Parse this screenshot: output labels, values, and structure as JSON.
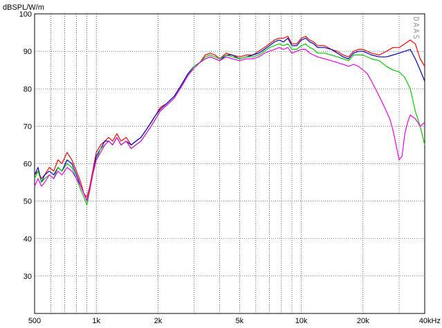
{
  "chart_data": {
    "type": "line",
    "ylabel": "dBSPL/W/m",
    "xscale": "log",
    "xlim": [
      500,
      40000
    ],
    "ylim": [
      20,
      100
    ],
    "grid": true,
    "watermark": "DAAS",
    "yticks": [
      {
        "value": 100,
        "label": "100"
      },
      {
        "value": 90,
        "label": "90"
      },
      {
        "value": 80,
        "label": "80"
      },
      {
        "value": 70,
        "label": "70"
      },
      {
        "value": 60,
        "label": "60"
      },
      {
        "value": 50,
        "label": "50"
      },
      {
        "value": 40,
        "label": "40"
      },
      {
        "value": 30,
        "label": "30"
      }
    ],
    "xticks": [
      {
        "value": 500,
        "label": "500"
      },
      {
        "value": 1000,
        "label": "1k"
      },
      {
        "value": 2000,
        "label": "2k"
      },
      {
        "value": 5000,
        "label": "5k"
      },
      {
        "value": 10000,
        "label": "10k"
      },
      {
        "value": 20000,
        "label": "20k"
      },
      {
        "value": 40000,
        "label": "40kHz"
      }
    ],
    "minor_x_grid": [
      600,
      700,
      800,
      900,
      3000,
      4000,
      6000,
      7000,
      8000,
      9000,
      30000
    ],
    "series": [
      {
        "color": "#ff0000",
        "x": [
          500,
          520,
          540,
          560,
          590,
          620,
          650,
          680,
          720,
          760,
          800,
          840,
          870,
          900,
          930,
          960,
          1000,
          1050,
          1100,
          1150,
          1200,
          1260,
          1320,
          1400,
          1480,
          1560,
          1650,
          1750,
          1850,
          1950,
          2050,
          2200,
          2400,
          2600,
          2800,
          3000,
          3200,
          3400,
          3600,
          3800,
          4000,
          4300,
          4600,
          5000,
          5400,
          5800,
          6200,
          6600,
          7000,
          7400,
          7800,
          8200,
          8600,
          9000,
          9500,
          10000,
          10500,
          11000,
          11500,
          12000,
          13000,
          14000,
          15000,
          16000,
          17000,
          18000,
          19000,
          20000,
          22000,
          24000,
          26000,
          28000,
          30000,
          32000,
          34000,
          36000,
          38000,
          40000
        ],
        "y": [
          57,
          58,
          56,
          57,
          59,
          58,
          61,
          60,
          63,
          61,
          58,
          55,
          52,
          51,
          54,
          58,
          63,
          65,
          66,
          67,
          66,
          68,
          66,
          67,
          65,
          66,
          67,
          69,
          71,
          73,
          75,
          76,
          78,
          81,
          84,
          86,
          87,
          89,
          89.5,
          89,
          88,
          89.5,
          89,
          88.5,
          89,
          89,
          90,
          91,
          92,
          93,
          93.5,
          93.5,
          94,
          92,
          92,
          93.5,
          94,
          93,
          92.5,
          91.5,
          91.5,
          90.5,
          90,
          89,
          88.5,
          90,
          90.5,
          90.5,
          89.5,
          89,
          90,
          91,
          91,
          92,
          93,
          92,
          88,
          86
        ]
      },
      {
        "color": "#0000cc",
        "x": [
          500,
          520,
          540,
          560,
          590,
          620,
          650,
          680,
          720,
          760,
          800,
          840,
          870,
          900,
          930,
          960,
          1000,
          1050,
          1100,
          1150,
          1200,
          1260,
          1320,
          1400,
          1480,
          1560,
          1650,
          1750,
          1850,
          1950,
          2050,
          2200,
          2400,
          2600,
          2800,
          3000,
          3200,
          3400,
          3600,
          3800,
          4000,
          4300,
          4600,
          5000,
          5400,
          5800,
          6200,
          6600,
          7000,
          7400,
          7800,
          8200,
          8600,
          9000,
          9500,
          10000,
          10500,
          11000,
          11500,
          12000,
          13000,
          14000,
          15000,
          16000,
          17000,
          18000,
          19000,
          20000,
          22000,
          24000,
          26000,
          28000,
          30000,
          32000,
          34000,
          36000,
          38000,
          40000
        ],
        "y": [
          57,
          59,
          55,
          57,
          58,
          57,
          59,
          58,
          61,
          60,
          57,
          54,
          52,
          50,
          53,
          57,
          62,
          64,
          66,
          66,
          65,
          67,
          65,
          66,
          65,
          66,
          67,
          69,
          71,
          73,
          74.5,
          76,
          78,
          81,
          84,
          86,
          87,
          88,
          88.5,
          88,
          87.5,
          89,
          89,
          88,
          88.5,
          89,
          89.5,
          90.5,
          91.5,
          92.5,
          93,
          92.5,
          93.5,
          91.5,
          91.5,
          93,
          93.5,
          92.5,
          92,
          91,
          91,
          90.5,
          89.5,
          88.5,
          88,
          89.5,
          90,
          90,
          89,
          88.5,
          88.5,
          89,
          89.5,
          90,
          90.5,
          88,
          85,
          82
        ]
      },
      {
        "color": "#00cc00",
        "x": [
          500,
          520,
          540,
          560,
          590,
          620,
          650,
          680,
          720,
          760,
          800,
          840,
          870,
          900,
          930,
          960,
          1000,
          1050,
          1100,
          1150,
          1200,
          1260,
          1320,
          1400,
          1480,
          1560,
          1650,
          1750,
          1850,
          1950,
          2050,
          2200,
          2400,
          2600,
          2800,
          3000,
          3200,
          3400,
          3600,
          3800,
          4000,
          4300,
          4600,
          5000,
          5400,
          5800,
          6200,
          6600,
          7000,
          7400,
          7800,
          8200,
          8600,
          9000,
          9500,
          10000,
          10500,
          11000,
          11500,
          12000,
          13000,
          14000,
          15000,
          16000,
          17000,
          18000,
          19000,
          20000,
          22000,
          24000,
          26000,
          28000,
          30000,
          32000,
          34000,
          36000,
          38000,
          40000
        ],
        "y": [
          56,
          58,
          55,
          56,
          57,
          56,
          59,
          58,
          60,
          59,
          56,
          53,
          51,
          49,
          53,
          57,
          61,
          64,
          65,
          66,
          65,
          67,
          65,
          66,
          64,
          65,
          66,
          68,
          70,
          72,
          74,
          75.5,
          77.5,
          80.5,
          83.5,
          86,
          87,
          88.5,
          89,
          88.5,
          88,
          89,
          88.5,
          88,
          88.5,
          88.5,
          89,
          90,
          91,
          91.5,
          92,
          91.5,
          92,
          90.5,
          90.5,
          91.5,
          92,
          91,
          90.5,
          89.5,
          89.5,
          89,
          88.5,
          88,
          87.5,
          89,
          89,
          89,
          88,
          87.5,
          86,
          85,
          84.5,
          83,
          80,
          74,
          70,
          65
        ]
      },
      {
        "color": "#ee00ee",
        "x": [
          500,
          520,
          540,
          560,
          590,
          620,
          650,
          680,
          720,
          760,
          800,
          840,
          870,
          900,
          930,
          960,
          1000,
          1050,
          1100,
          1150,
          1200,
          1260,
          1320,
          1400,
          1480,
          1560,
          1650,
          1750,
          1850,
          1950,
          2050,
          2200,
          2400,
          2600,
          2800,
          3000,
          3200,
          3400,
          3600,
          3800,
          4000,
          4300,
          4600,
          5000,
          5400,
          5800,
          6200,
          6600,
          7000,
          7400,
          7800,
          8200,
          8600,
          9000,
          9500,
          10000,
          10500,
          11000,
          11500,
          12000,
          13000,
          14000,
          15000,
          16000,
          17000,
          18000,
          19000,
          20000,
          21000,
          22000,
          23000,
          24000,
          25000,
          26000,
          27000,
          28000,
          29000,
          30000,
          31000,
          32000,
          33000,
          34000,
          36000,
          38000,
          40000
        ],
        "y": [
          54,
          56,
          54,
          55,
          57,
          56,
          58,
          57,
          59,
          58,
          56,
          54,
          52,
          50,
          53,
          57,
          61,
          63,
          65,
          66,
          65,
          67,
          65,
          66,
          64,
          65,
          66,
          68,
          70,
          72,
          74,
          75.5,
          77.5,
          80.5,
          83.5,
          85.5,
          87,
          88,
          88.5,
          88,
          87.5,
          88.5,
          88,
          87.5,
          88,
          88,
          88.5,
          89.5,
          90,
          90.5,
          91,
          90.5,
          91,
          89.5,
          90,
          90.5,
          90.5,
          89.5,
          89,
          88.5,
          88,
          87.5,
          87,
          86.5,
          86,
          86.5,
          86,
          85,
          84,
          82,
          80,
          78,
          76,
          74,
          72,
          69,
          65,
          61,
          62,
          68,
          71,
          73,
          72,
          70,
          71
        ]
      }
    ]
  }
}
